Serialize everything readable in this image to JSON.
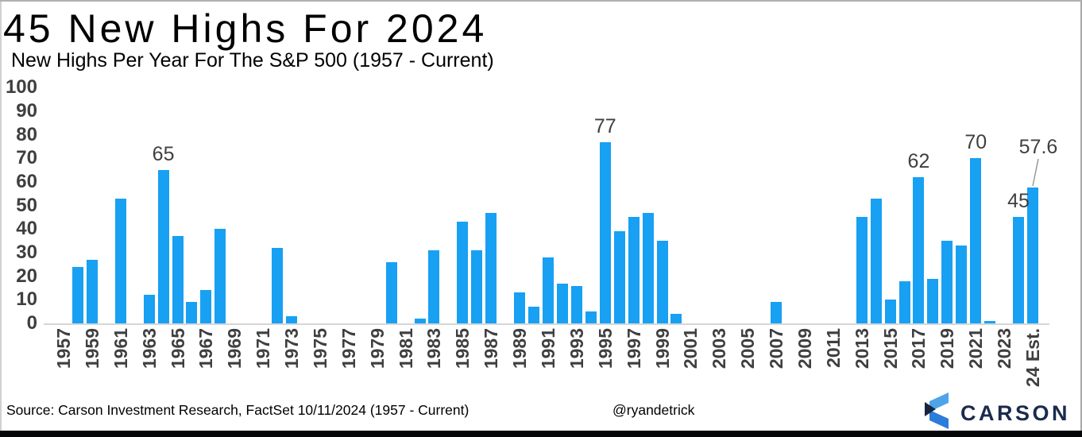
{
  "title": "45 New Highs For 2024",
  "subtitle": "New Highs Per Year For The S&P 500 (1957 - Current)",
  "footer": {
    "source": "Source: Carson Investment Research, FactSet 10/11/2024 (1957 - Current)",
    "handle": "@ryandetrick",
    "brand": "CARSON"
  },
  "colors": {
    "bar": "#18a0f3",
    "axis_text": "#3f3f3f",
    "value_label_text": "#404040",
    "axis_line": "#d6d6d6",
    "logo_text_navy": "#1b2b4d",
    "logo_light_blue": "#4fa3e8",
    "logo_mid_blue": "#2c7cd9",
    "logo_dark_navy": "#16263f",
    "bottom_bar": "#050607"
  },
  "chart_data": {
    "type": "bar",
    "title": "45 New Highs For 2024",
    "subtitle": "New Highs Per Year For The S&P 500 (1957 - Current)",
    "ylim": [
      0,
      100
    ],
    "y_ticks": [
      0,
      10,
      20,
      30,
      40,
      50,
      60,
      70,
      80,
      90,
      100
    ],
    "grid": false,
    "legend": false,
    "bar_color": "#18a0f3",
    "categories": [
      "1957",
      "1958",
      "1959",
      "1960",
      "1961",
      "1962",
      "1963",
      "1964",
      "1965",
      "1966",
      "1967",
      "1968",
      "1969",
      "1970",
      "1971",
      "1972",
      "1973",
      "1974",
      "1975",
      "1976",
      "1977",
      "1978",
      "1979",
      "1980",
      "1981",
      "1982",
      "1983",
      "1984",
      "1985",
      "1986",
      "1987",
      "1988",
      "1989",
      "1990",
      "1991",
      "1992",
      "1993",
      "1994",
      "1995",
      "1996",
      "1997",
      "1998",
      "1999",
      "2000",
      "2001",
      "2002",
      "2003",
      "2004",
      "2005",
      "2006",
      "2007",
      "2008",
      "2009",
      "2010",
      "2011",
      "2012",
      "2013",
      "2014",
      "2015",
      "2016",
      "2017",
      "2018",
      "2019",
      "2020",
      "2021",
      "2022",
      "2023",
      "2024",
      "24 Est."
    ],
    "values": [
      0,
      24,
      27,
      0,
      53,
      0,
      12,
      65,
      37,
      9,
      14,
      40,
      0,
      0,
      0,
      32,
      3,
      0,
      0,
      0,
      0,
      0,
      0,
      26,
      0,
      2,
      31,
      0,
      43,
      31,
      47,
      0,
      13,
      7,
      28,
      17,
      16,
      5,
      77,
      39,
      45,
      47,
      35,
      4,
      0,
      0,
      0,
      0,
      0,
      0,
      9,
      0,
      0,
      0,
      0,
      0,
      45,
      53,
      10,
      18,
      62,
      19,
      35,
      33,
      70,
      1,
      0,
      45,
      57.6
    ],
    "x_tick_labels": [
      "1957",
      "1959",
      "1961",
      "1963",
      "1965",
      "1967",
      "1969",
      "1971",
      "1973",
      "1975",
      "1977",
      "1979",
      "1981",
      "1983",
      "1985",
      "1987",
      "1989",
      "1991",
      "1993",
      "1995",
      "1997",
      "1999",
      "2001",
      "2003",
      "2005",
      "2007",
      "2009",
      "2011",
      "2013",
      "2015",
      "2017",
      "2019",
      "2021",
      "2023",
      "24 Est."
    ],
    "annotations": [
      {
        "category": "1964",
        "text": "65"
      },
      {
        "category": "1995",
        "text": "77"
      },
      {
        "category": "2017",
        "text": "62"
      },
      {
        "category": "2021",
        "text": "70"
      },
      {
        "category": "2024",
        "text": "45"
      },
      {
        "category": "24 Est.",
        "text": "57.6",
        "dx": 7,
        "dy": -31,
        "leader": true
      }
    ]
  }
}
